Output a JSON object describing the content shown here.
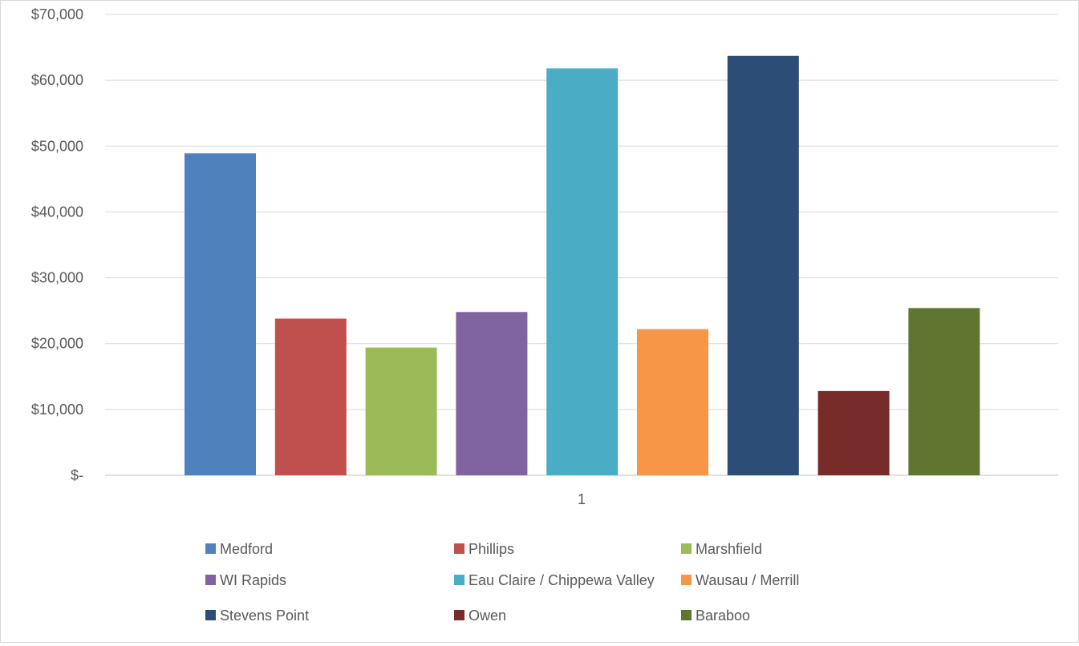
{
  "chart_data": {
    "type": "bar",
    "categories": [
      "1"
    ],
    "y_ticks": [
      "$-",
      "$10,000",
      "$20,000",
      "$30,000",
      "$40,000",
      "$50,000",
      "$60,000",
      "$70,000"
    ],
    "ylim": [
      0,
      70000
    ],
    "grid": true,
    "legend_position": "bottom",
    "series": [
      {
        "name": "Medford",
        "values": [
          48900
        ],
        "color": "#4f81bd"
      },
      {
        "name": "Phillips",
        "values": [
          23800
        ],
        "color": "#c0504d"
      },
      {
        "name": "Marshfield",
        "values": [
          19400
        ],
        "color": "#9bbb59"
      },
      {
        "name": "WI Rapids",
        "values": [
          24800
        ],
        "color": "#8064a2"
      },
      {
        "name": "Eau Claire / Chippewa Valley",
        "values": [
          61800
        ],
        "color": "#4bacc6"
      },
      {
        "name": "Wausau / Merrill",
        "values": [
          22200
        ],
        "color": "#f79646"
      },
      {
        "name": "Stevens Point",
        "values": [
          63700
        ],
        "color": "#2c4d75"
      },
      {
        "name": "Owen",
        "values": [
          12800
        ],
        "color": "#772c2a"
      },
      {
        "name": "Baraboo",
        "values": [
          25400
        ],
        "color": "#5f7530"
      }
    ]
  }
}
